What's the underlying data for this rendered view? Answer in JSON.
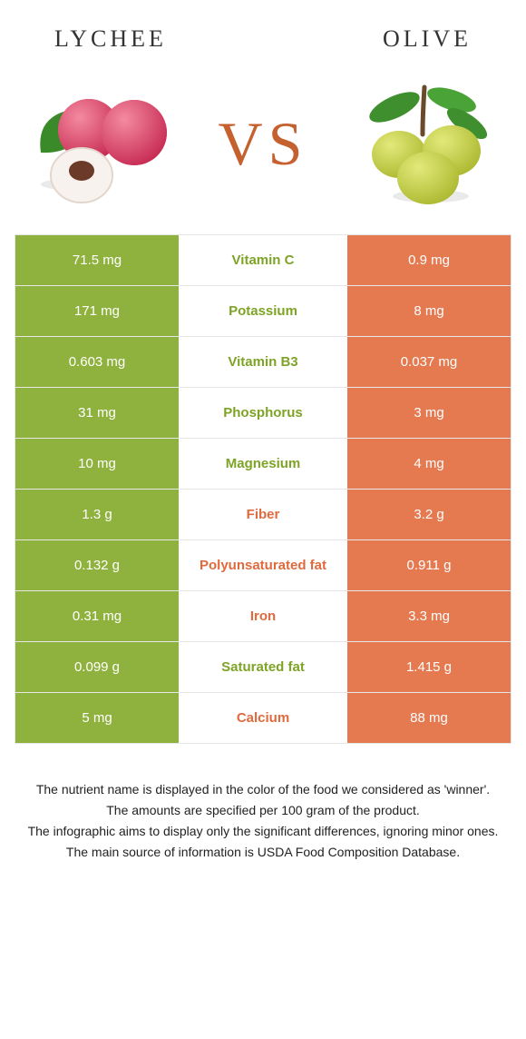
{
  "colors": {
    "left": "#8fb23e",
    "right": "#e57a51",
    "row_border": "#e6e6e6",
    "vs_text": "#c5602f",
    "nutrient_left_text": "#7ea325",
    "nutrient_right_text": "#e06a3e"
  },
  "header": {
    "left_title": "LYCHEE",
    "right_title": "OLIVE"
  },
  "vs_label": "VS",
  "table": {
    "rows": [
      {
        "left": "71.5 mg",
        "name": "Vitamin C",
        "right": "0.9 mg",
        "winner": "left"
      },
      {
        "left": "171 mg",
        "name": "Potassium",
        "right": "8 mg",
        "winner": "left"
      },
      {
        "left": "0.603 mg",
        "name": "Vitamin B3",
        "right": "0.037 mg",
        "winner": "left"
      },
      {
        "left": "31 mg",
        "name": "Phosphorus",
        "right": "3 mg",
        "winner": "left"
      },
      {
        "left": "10 mg",
        "name": "Magnesium",
        "right": "4 mg",
        "winner": "left"
      },
      {
        "left": "1.3 g",
        "name": "Fiber",
        "right": "3.2 g",
        "winner": "right"
      },
      {
        "left": "0.132 g",
        "name": "Polyunsaturated fat",
        "right": "0.911 g",
        "winner": "right"
      },
      {
        "left": "0.31 mg",
        "name": "Iron",
        "right": "3.3 mg",
        "winner": "right"
      },
      {
        "left": "0.099 g",
        "name": "Saturated fat",
        "right": "1.415 g",
        "winner": "left"
      },
      {
        "left": "5 mg",
        "name": "Calcium",
        "right": "88 mg",
        "winner": "right"
      }
    ]
  },
  "footnotes": [
    "The nutrient name is displayed in the color of the food we considered as 'winner'.",
    "The amounts are specified per 100 gram of the product.",
    "The infographic aims to display only the significant differences, ignoring minor ones.",
    "The main source of information is USDA Food Composition Database."
  ]
}
